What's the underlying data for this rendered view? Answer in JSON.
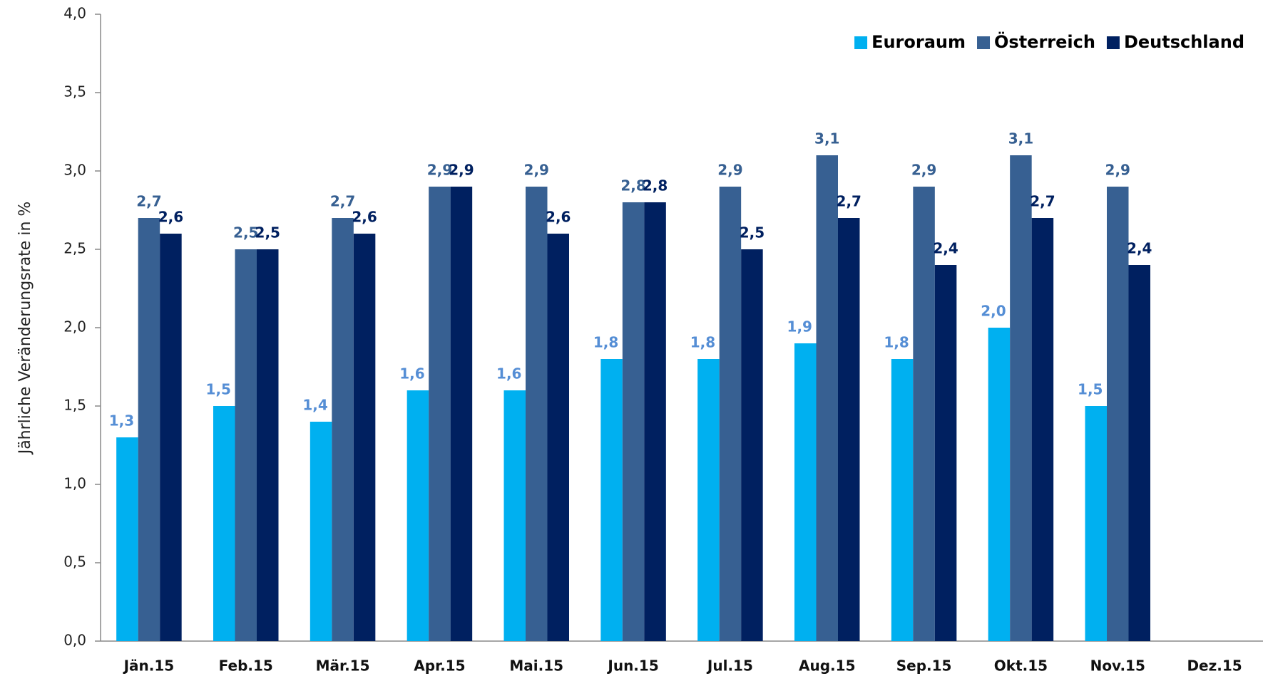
{
  "chart_data": {
    "type": "bar",
    "y_label": "Jährliche Veränderungsrate in %",
    "categories": [
      "Jän.15",
      "Feb.15",
      "Mär.15",
      "Apr.15",
      "Mai.15",
      "Jun.15",
      "Jul.15",
      "Aug.15",
      "Sep.15",
      "Okt.15",
      "Nov.15",
      "Dez.15"
    ],
    "series": [
      {
        "name": "Euroraum",
        "color": "#00b0f0",
        "label_color": "#558ed5",
        "values": [
          1.3,
          1.5,
          1.4,
          1.6,
          1.6,
          1.8,
          1.8,
          1.9,
          1.8,
          2.0,
          1.5,
          null
        ],
        "value_labels": [
          "1,3",
          "1,5",
          "1,4",
          "1,6",
          "1,6",
          "1,8",
          "1,8",
          "1,9",
          "1,8",
          "2,0",
          "1,5",
          null
        ]
      },
      {
        "name": "Österreich",
        "color": "#376092",
        "label_color": "#376092",
        "values": [
          2.7,
          2.5,
          2.7,
          2.9,
          2.9,
          2.8,
          2.9,
          3.1,
          2.9,
          3.1,
          2.9,
          null
        ],
        "value_labels": [
          "2,7",
          "2,5",
          "2,7",
          "2,9",
          "2,9",
          "2,8",
          "2,9",
          "3,1",
          "2,9",
          "3,1",
          "2,9",
          null
        ]
      },
      {
        "name": "Deutschland",
        "color": "#002060",
        "label_color": "#002060",
        "values": [
          2.6,
          2.5,
          2.6,
          2.9,
          2.6,
          2.8,
          2.5,
          2.7,
          2.4,
          2.7,
          2.4,
          null
        ],
        "value_labels": [
          "2,6",
          "2,5",
          "2,6",
          "2,9",
          "2,6",
          "2,8",
          "2,5",
          "2,7",
          "2,4",
          "2,7",
          "2,4",
          null
        ]
      }
    ],
    "ylim": [
      0,
      4
    ],
    "yticks": [
      {
        "value": 0,
        "label": "0,0"
      },
      {
        "value": 0.5,
        "label": "0,5"
      },
      {
        "value": 1,
        "label": "1,0"
      },
      {
        "value": 1.5,
        "label": "1,5"
      },
      {
        "value": 2,
        "label": "2,0"
      },
      {
        "value": 2.5,
        "label": "2,5"
      },
      {
        "value": 3,
        "label": "3,0"
      },
      {
        "value": 3.5,
        "label": "3,5"
      },
      {
        "value": 4,
        "label": "4,0"
      }
    ],
    "legend": "upper right"
  }
}
